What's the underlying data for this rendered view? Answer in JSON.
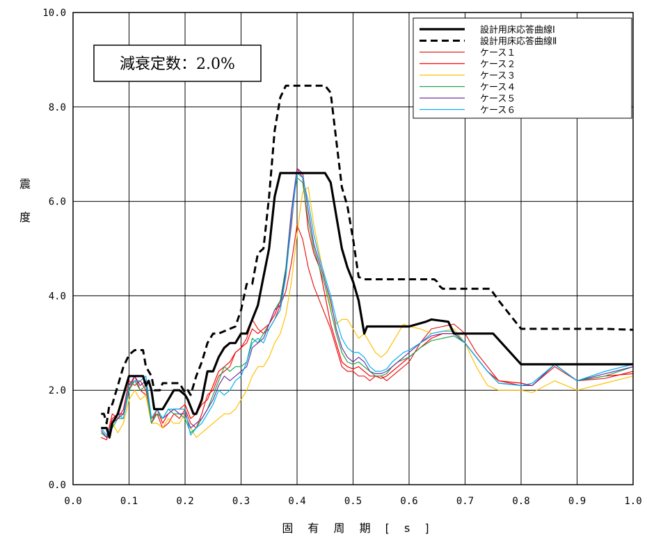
{
  "chart_data": {
    "type": "line",
    "xlabel": "固 有 周 期 [ s ]",
    "ylabel_chars": [
      "震",
      "度"
    ],
    "xlim": [
      0.0,
      1.0
    ],
    "ylim": [
      0.0,
      10.0
    ],
    "x_ticks": [
      "0.0",
      "0.1",
      "0.2",
      "0.3",
      "0.4",
      "0.5",
      "0.6",
      "0.7",
      "0.8",
      "0.9",
      "1.0"
    ],
    "y_ticks": [
      "0.0",
      "2.0",
      "4.0",
      "6.0",
      "8.0",
      "10.0"
    ],
    "grid": true,
    "legend_position": "top-right",
    "annotation": "減衰定数：2.0%",
    "series": [
      {
        "name": "設計用床応答曲線Ⅰ",
        "color": "#000000",
        "style": "solid-thick",
        "x": [
          0.05,
          0.06,
          0.065,
          0.07,
          0.08,
          0.09,
          0.1,
          0.125,
          0.13,
          0.135,
          0.14,
          0.145,
          0.16,
          0.17,
          0.18,
          0.19,
          0.2,
          0.205,
          0.215,
          0.22,
          0.23,
          0.24,
          0.25,
          0.26,
          0.27,
          0.28,
          0.29,
          0.3,
          0.31,
          0.32,
          0.33,
          0.34,
          0.35,
          0.36,
          0.37,
          0.4,
          0.45,
          0.46,
          0.47,
          0.48,
          0.49,
          0.5,
          0.51,
          0.52,
          0.525,
          0.53,
          0.6,
          0.63,
          0.64,
          0.67,
          0.68,
          0.75,
          0.8,
          0.85,
          0.95,
          1.0
        ],
        "values": [
          1.2,
          1.2,
          1.0,
          1.3,
          1.5,
          1.9,
          2.3,
          2.3,
          2.1,
          2.2,
          2.0,
          1.6,
          1.6,
          1.8,
          2.0,
          2.0,
          1.9,
          1.8,
          1.5,
          1.5,
          1.8,
          2.4,
          2.4,
          2.7,
          2.9,
          3.0,
          3.0,
          3.2,
          3.2,
          3.5,
          3.8,
          4.4,
          5.0,
          6.1,
          6.6,
          6.6,
          6.6,
          6.4,
          5.7,
          5.0,
          4.6,
          4.3,
          3.9,
          3.2,
          3.35,
          3.35,
          3.35,
          3.45,
          3.5,
          3.45,
          3.2,
          3.2,
          2.55,
          2.55,
          2.55,
          2.55
        ]
      },
      {
        "name": "設計用床応答曲線Ⅱ",
        "color": "#000000",
        "style": "dashed",
        "x": [
          0.05,
          0.055,
          0.06,
          0.065,
          0.07,
          0.08,
          0.09,
          0.1,
          0.105,
          0.11,
          0.125,
          0.13,
          0.14,
          0.145,
          0.155,
          0.16,
          0.17,
          0.19,
          0.2,
          0.205,
          0.21,
          0.22,
          0.23,
          0.24,
          0.25,
          0.26,
          0.27,
          0.28,
          0.29,
          0.3,
          0.31,
          0.32,
          0.33,
          0.34,
          0.35,
          0.36,
          0.37,
          0.38,
          0.45,
          0.46,
          0.47,
          0.48,
          0.49,
          0.5,
          0.51,
          0.52,
          0.6,
          0.645,
          0.65,
          0.655,
          0.66,
          0.7,
          0.745,
          0.76,
          0.78,
          0.8,
          0.85,
          0.95,
          1.0
        ],
        "values": [
          1.5,
          1.5,
          1.3,
          1.7,
          1.7,
          2.1,
          2.5,
          2.75,
          2.8,
          2.85,
          2.85,
          2.5,
          2.3,
          2.0,
          2.0,
          2.15,
          2.15,
          2.15,
          1.95,
          2.0,
          1.9,
          2.3,
          2.6,
          3.0,
          3.2,
          3.2,
          3.25,
          3.3,
          3.35,
          3.7,
          4.25,
          4.25,
          4.9,
          5.0,
          6.1,
          7.5,
          8.2,
          8.45,
          8.45,
          8.3,
          7.3,
          6.3,
          5.9,
          5.2,
          4.4,
          4.35,
          4.35,
          4.35,
          4.3,
          4.2,
          4.15,
          4.15,
          4.15,
          3.9,
          3.6,
          3.3,
          3.3,
          3.3,
          3.28
        ]
      },
      {
        "name": "ケース１",
        "color": "#E41A1C",
        "style": "thin",
        "x": [
          0.05,
          0.06,
          0.07,
          0.08,
          0.09,
          0.1,
          0.11,
          0.12,
          0.13,
          0.14,
          0.15,
          0.16,
          0.17,
          0.18,
          0.19,
          0.2,
          0.21,
          0.22,
          0.23,
          0.24,
          0.25,
          0.26,
          0.27,
          0.28,
          0.29,
          0.3,
          0.31,
          0.32,
          0.33,
          0.34,
          0.35,
          0.36,
          0.37,
          0.38,
          0.39,
          0.4,
          0.41,
          0.42,
          0.43,
          0.44,
          0.45,
          0.46,
          0.47,
          0.48,
          0.49,
          0.5,
          0.51,
          0.52,
          0.53,
          0.54,
          0.55,
          0.56,
          0.57,
          0.58,
          0.59,
          0.6,
          0.62,
          0.64,
          0.66,
          0.68,
          0.7,
          0.72,
          0.74,
          0.76,
          0.8,
          0.82,
          0.86,
          0.9,
          0.95,
          1.0
        ],
        "values": [
          1.1,
          1.0,
          1.5,
          1.4,
          1.6,
          2.2,
          2.1,
          2.2,
          2.0,
          1.4,
          1.5,
          1.2,
          1.3,
          1.5,
          1.4,
          1.6,
          1.3,
          1.2,
          1.5,
          1.9,
          2.0,
          2.3,
          2.4,
          2.5,
          2.8,
          2.9,
          3.1,
          3.5,
          3.3,
          3.2,
          3.3,
          3.5,
          3.8,
          4.1,
          4.7,
          5.5,
          5.2,
          4.6,
          4.2,
          3.9,
          3.6,
          3.3,
          2.9,
          2.5,
          2.4,
          2.4,
          2.3,
          2.3,
          2.2,
          2.3,
          2.3,
          2.2,
          2.3,
          2.4,
          2.5,
          2.6,
          3.0,
          3.3,
          3.35,
          3.4,
          3.2,
          2.8,
          2.5,
          2.2,
          2.1,
          2.1,
          2.5,
          2.2,
          2.25,
          2.4
        ]
      },
      {
        "name": "ケース２",
        "color": "#FF0000",
        "style": "thin",
        "x": [
          0.05,
          0.06,
          0.07,
          0.08,
          0.09,
          0.1,
          0.11,
          0.12,
          0.13,
          0.14,
          0.15,
          0.16,
          0.17,
          0.18,
          0.19,
          0.2,
          0.21,
          0.22,
          0.23,
          0.24,
          0.25,
          0.26,
          0.27,
          0.28,
          0.29,
          0.3,
          0.31,
          0.32,
          0.33,
          0.34,
          0.35,
          0.36,
          0.37,
          0.38,
          0.39,
          0.4,
          0.41,
          0.42,
          0.43,
          0.44,
          0.45,
          0.46,
          0.47,
          0.48,
          0.49,
          0.5,
          0.51,
          0.52,
          0.53,
          0.54,
          0.55,
          0.56,
          0.57,
          0.58,
          0.59,
          0.6,
          0.62,
          0.64,
          0.66,
          0.68,
          0.7,
          0.72,
          0.74,
          0.76,
          0.8,
          0.82,
          0.86,
          0.9,
          0.95,
          1.0
        ],
        "values": [
          1.0,
          0.95,
          1.4,
          1.5,
          1.5,
          2.0,
          2.3,
          2.0,
          1.9,
          1.3,
          1.6,
          1.3,
          1.5,
          1.6,
          1.6,
          1.7,
          1.4,
          1.5,
          1.7,
          1.8,
          2.1,
          2.4,
          2.5,
          2.6,
          2.8,
          2.9,
          3.0,
          3.3,
          3.2,
          3.3,
          3.4,
          3.6,
          3.9,
          4.5,
          5.5,
          6.7,
          6.5,
          5.4,
          4.9,
          4.6,
          4.0,
          3.4,
          3.0,
          2.6,
          2.5,
          2.45,
          2.5,
          2.4,
          2.3,
          2.3,
          2.25,
          2.3,
          2.4,
          2.5,
          2.6,
          2.7,
          2.9,
          3.1,
          3.2,
          3.2,
          3.0,
          2.7,
          2.4,
          2.2,
          2.15,
          2.1,
          2.55,
          2.2,
          2.3,
          2.35
        ]
      },
      {
        "name": "ケース３",
        "color": "#FFC000",
        "style": "thin",
        "x": [
          0.05,
          0.06,
          0.07,
          0.08,
          0.09,
          0.1,
          0.11,
          0.12,
          0.13,
          0.14,
          0.15,
          0.16,
          0.17,
          0.18,
          0.19,
          0.2,
          0.21,
          0.22,
          0.23,
          0.24,
          0.25,
          0.26,
          0.27,
          0.28,
          0.29,
          0.3,
          0.31,
          0.32,
          0.33,
          0.34,
          0.35,
          0.36,
          0.37,
          0.38,
          0.39,
          0.4,
          0.41,
          0.42,
          0.43,
          0.44,
          0.45,
          0.46,
          0.47,
          0.48,
          0.49,
          0.5,
          0.51,
          0.52,
          0.53,
          0.54,
          0.55,
          0.56,
          0.57,
          0.58,
          0.59,
          0.6,
          0.62,
          0.64,
          0.66,
          0.68,
          0.7,
          0.72,
          0.74,
          0.76,
          0.8,
          0.82,
          0.86,
          0.9,
          0.95,
          1.0
        ],
        "values": [
          1.1,
          1.0,
          1.3,
          1.1,
          1.3,
          1.8,
          2.0,
          1.8,
          1.9,
          1.3,
          1.3,
          1.2,
          1.4,
          1.3,
          1.3,
          1.5,
          1.2,
          1.0,
          1.1,
          1.2,
          1.3,
          1.4,
          1.5,
          1.5,
          1.6,
          1.8,
          2.0,
          2.3,
          2.5,
          2.5,
          2.7,
          3.0,
          3.2,
          3.6,
          4.3,
          5.3,
          6.2,
          6.3,
          5.5,
          4.9,
          4.3,
          3.8,
          3.4,
          3.5,
          3.5,
          3.3,
          3.1,
          3.2,
          3.0,
          2.8,
          2.7,
          2.8,
          3.0,
          3.2,
          3.4,
          3.35,
          3.3,
          3.2,
          3.25,
          3.3,
          3.0,
          2.5,
          2.1,
          2.0,
          2.0,
          1.95,
          2.2,
          2.0,
          2.15,
          2.3
        ]
      },
      {
        "name": "ケース４",
        "color": "#1AA64A",
        "style": "thin",
        "x": [
          0.05,
          0.06,
          0.07,
          0.08,
          0.09,
          0.1,
          0.11,
          0.12,
          0.13,
          0.14,
          0.15,
          0.16,
          0.17,
          0.18,
          0.19,
          0.2,
          0.21,
          0.22,
          0.23,
          0.24,
          0.25,
          0.26,
          0.27,
          0.28,
          0.29,
          0.3,
          0.31,
          0.32,
          0.33,
          0.34,
          0.35,
          0.36,
          0.37,
          0.38,
          0.39,
          0.4,
          0.41,
          0.42,
          0.43,
          0.44,
          0.45,
          0.46,
          0.47,
          0.48,
          0.49,
          0.5,
          0.51,
          0.52,
          0.53,
          0.54,
          0.55,
          0.56,
          0.57,
          0.58,
          0.59,
          0.6,
          0.62,
          0.64,
          0.66,
          0.68,
          0.7,
          0.72,
          0.74,
          0.76,
          0.8,
          0.82,
          0.86,
          0.9,
          0.95,
          1.0
        ],
        "values": [
          1.1,
          1.0,
          1.2,
          1.4,
          1.4,
          2.0,
          2.2,
          2.0,
          2.1,
          1.3,
          1.5,
          1.4,
          1.6,
          1.5,
          1.5,
          1.4,
          1.1,
          1.2,
          1.4,
          1.6,
          1.9,
          2.2,
          2.5,
          2.4,
          2.5,
          2.5,
          2.6,
          3.1,
          3.0,
          3.2,
          3.4,
          3.7,
          3.9,
          4.6,
          5.8,
          6.5,
          6.4,
          5.6,
          5.0,
          4.6,
          4.2,
          3.7,
          3.2,
          2.8,
          2.6,
          2.55,
          2.6,
          2.5,
          2.4,
          2.3,
          2.3,
          2.35,
          2.5,
          2.6,
          2.65,
          2.7,
          2.9,
          3.05,
          3.1,
          3.15,
          3.0,
          2.7,
          2.4,
          2.15,
          2.1,
          2.1,
          2.55,
          2.2,
          2.3,
          2.5
        ]
      },
      {
        "name": "ケース５",
        "color": "#7030A0",
        "style": "thin",
        "x": [
          0.05,
          0.06,
          0.07,
          0.08,
          0.09,
          0.1,
          0.11,
          0.12,
          0.13,
          0.14,
          0.15,
          0.16,
          0.17,
          0.18,
          0.19,
          0.2,
          0.21,
          0.22,
          0.23,
          0.24,
          0.25,
          0.26,
          0.27,
          0.28,
          0.29,
          0.3,
          0.31,
          0.32,
          0.33,
          0.34,
          0.35,
          0.36,
          0.37,
          0.38,
          0.39,
          0.4,
          0.41,
          0.42,
          0.43,
          0.44,
          0.45,
          0.46,
          0.47,
          0.48,
          0.49,
          0.5,
          0.51,
          0.52,
          0.53,
          0.54,
          0.55,
          0.56,
          0.57,
          0.58,
          0.59,
          0.6,
          0.62,
          0.64,
          0.66,
          0.68,
          0.7,
          0.72,
          0.74,
          0.76,
          0.8,
          0.82,
          0.86,
          0.9,
          0.95,
          1.0
        ],
        "values": [
          1.15,
          1.0,
          1.3,
          1.4,
          1.5,
          2.1,
          2.3,
          2.1,
          2.2,
          1.4,
          1.6,
          1.4,
          1.5,
          1.6,
          1.5,
          1.5,
          1.2,
          1.3,
          1.4,
          1.6,
          1.8,
          2.1,
          2.3,
          2.2,
          2.3,
          2.4,
          2.5,
          2.9,
          3.0,
          3.1,
          3.4,
          3.7,
          3.8,
          4.5,
          5.8,
          6.7,
          6.6,
          5.8,
          5.1,
          4.7,
          4.3,
          3.9,
          3.3,
          2.9,
          2.7,
          2.6,
          2.7,
          2.6,
          2.4,
          2.35,
          2.35,
          2.4,
          2.5,
          2.6,
          2.7,
          2.8,
          3.0,
          3.15,
          3.2,
          3.2,
          3.0,
          2.7,
          2.4,
          2.15,
          2.1,
          2.1,
          2.55,
          2.2,
          2.35,
          2.5
        ]
      },
      {
        "name": "ケース６",
        "color": "#00B0F0",
        "style": "thin",
        "x": [
          0.05,
          0.06,
          0.07,
          0.08,
          0.09,
          0.1,
          0.11,
          0.12,
          0.13,
          0.14,
          0.15,
          0.16,
          0.17,
          0.18,
          0.19,
          0.2,
          0.21,
          0.22,
          0.23,
          0.24,
          0.25,
          0.26,
          0.27,
          0.28,
          0.29,
          0.3,
          0.31,
          0.32,
          0.33,
          0.34,
          0.35,
          0.36,
          0.37,
          0.38,
          0.39,
          0.4,
          0.41,
          0.42,
          0.43,
          0.44,
          0.45,
          0.46,
          0.47,
          0.48,
          0.49,
          0.5,
          0.51,
          0.52,
          0.53,
          0.54,
          0.55,
          0.56,
          0.57,
          0.58,
          0.59,
          0.6,
          0.62,
          0.64,
          0.66,
          0.68,
          0.7,
          0.72,
          0.74,
          0.76,
          0.8,
          0.82,
          0.86,
          0.9,
          0.95,
          1.0
        ],
        "values": [
          1.2,
          1.05,
          1.3,
          1.5,
          1.4,
          2.1,
          2.2,
          2.2,
          2.3,
          1.4,
          1.6,
          1.4,
          1.6,
          1.6,
          1.6,
          1.6,
          1.05,
          1.2,
          1.3,
          1.5,
          1.7,
          2.0,
          1.9,
          2.0,
          2.2,
          2.3,
          2.6,
          3.0,
          3.1,
          3.0,
          3.3,
          3.5,
          3.7,
          4.4,
          5.6,
          6.6,
          6.5,
          6.0,
          5.3,
          4.8,
          4.4,
          4.0,
          3.5,
          3.1,
          2.9,
          2.8,
          2.8,
          2.7,
          2.5,
          2.4,
          2.4,
          2.45,
          2.6,
          2.7,
          2.8,
          2.85,
          3.0,
          3.2,
          3.25,
          3.25,
          3.0,
          2.7,
          2.4,
          2.15,
          2.1,
          2.15,
          2.55,
          2.2,
          2.4,
          2.55
        ]
      }
    ]
  }
}
